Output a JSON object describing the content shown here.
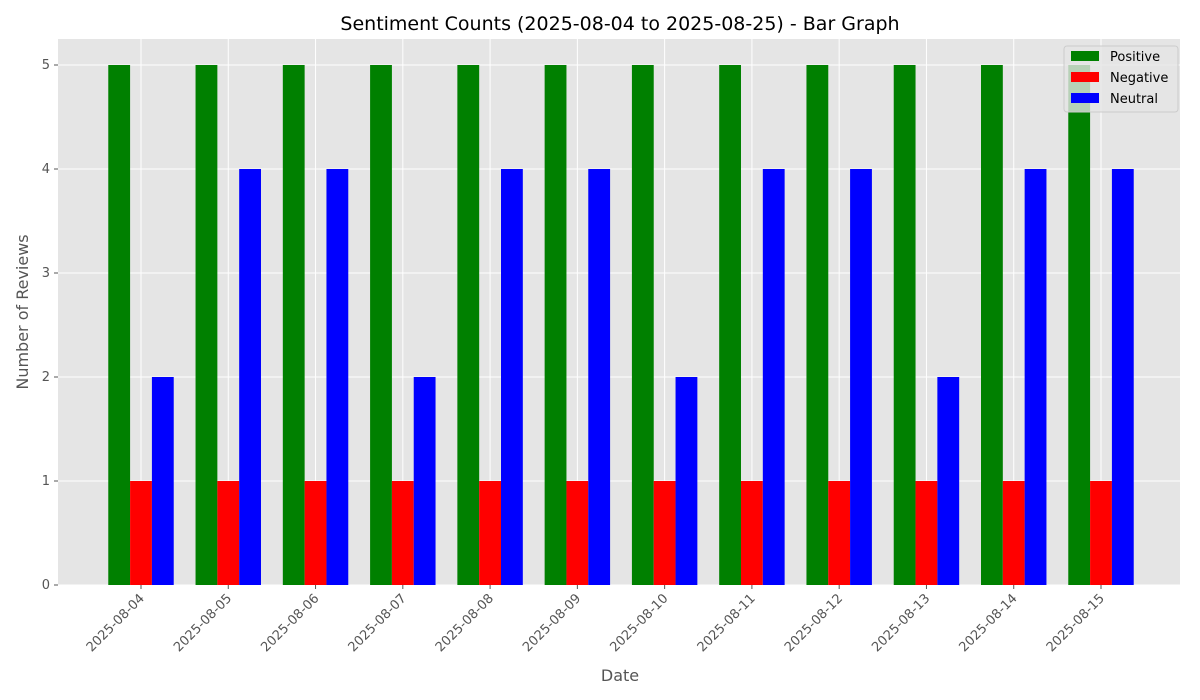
{
  "chart_data": {
    "type": "bar",
    "title": "Sentiment Counts (2025-08-04 to 2025-08-25) - Bar Graph",
    "xlabel": "Date",
    "ylabel": "Number of Reviews",
    "ylim": [
      0,
      5.25
    ],
    "yticks": [
      "0",
      "1",
      "2",
      "3",
      "4",
      "5"
    ],
    "grid": true,
    "legend_position": "top-right",
    "categories": [
      "2025-08-04",
      "2025-08-05",
      "2025-08-06",
      "2025-08-07",
      "2025-08-08",
      "2025-08-09",
      "2025-08-10",
      "2025-08-11",
      "2025-08-12",
      "2025-08-13",
      "2025-08-14",
      "2025-08-15"
    ],
    "series": [
      {
        "name": "Positive",
        "color": "#008000",
        "values": [
          5,
          5,
          5,
          5,
          5,
          5,
          5,
          5,
          5,
          5,
          5,
          5
        ]
      },
      {
        "name": "Negative",
        "color": "#ff0000",
        "values": [
          1,
          1,
          1,
          1,
          1,
          1,
          1,
          1,
          1,
          1,
          1,
          1
        ]
      },
      {
        "name": "Neutral",
        "color": "#0000ff",
        "values": [
          2,
          4,
          4,
          2,
          4,
          4,
          2,
          4,
          4,
          2,
          4,
          4
        ]
      }
    ]
  }
}
